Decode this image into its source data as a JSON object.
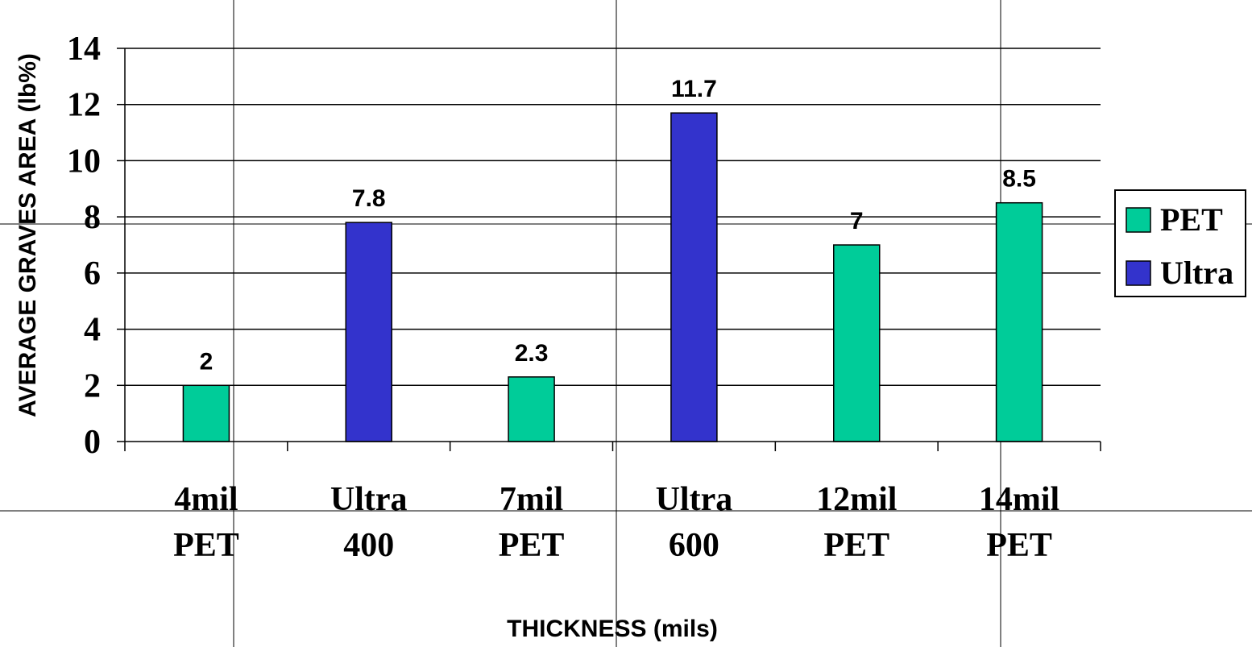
{
  "chart_data": {
    "type": "bar",
    "categories": [
      [
        "4mil",
        "PET"
      ],
      [
        "Ultra",
        "400"
      ],
      [
        "7mil",
        "PET"
      ],
      [
        "Ultra",
        "600"
      ],
      [
        "12mil",
        "PET"
      ],
      [
        "14mil",
        "PET"
      ]
    ],
    "series": [
      {
        "name": "PET",
        "color": "#00cc99",
        "values": [
          2,
          null,
          2.3,
          null,
          7,
          8.5
        ]
      },
      {
        "name": "Ultra",
        "color": "#3333cc",
        "values": [
          null,
          7.8,
          null,
          11.7,
          null,
          null
        ]
      }
    ],
    "data_labels": [
      "2",
      "7.8",
      "2.3",
      "11.7",
      "7",
      "8.5"
    ],
    "title": "",
    "xlabel": "THICKNESS (mils)",
    "ylabel": "AVERAGE GRAVES AREA (lb%)",
    "ylim": [
      0,
      14
    ],
    "yticks": [
      0,
      2,
      4,
      6,
      8,
      10,
      12,
      14
    ],
    "grid": true,
    "legend": "right"
  }
}
